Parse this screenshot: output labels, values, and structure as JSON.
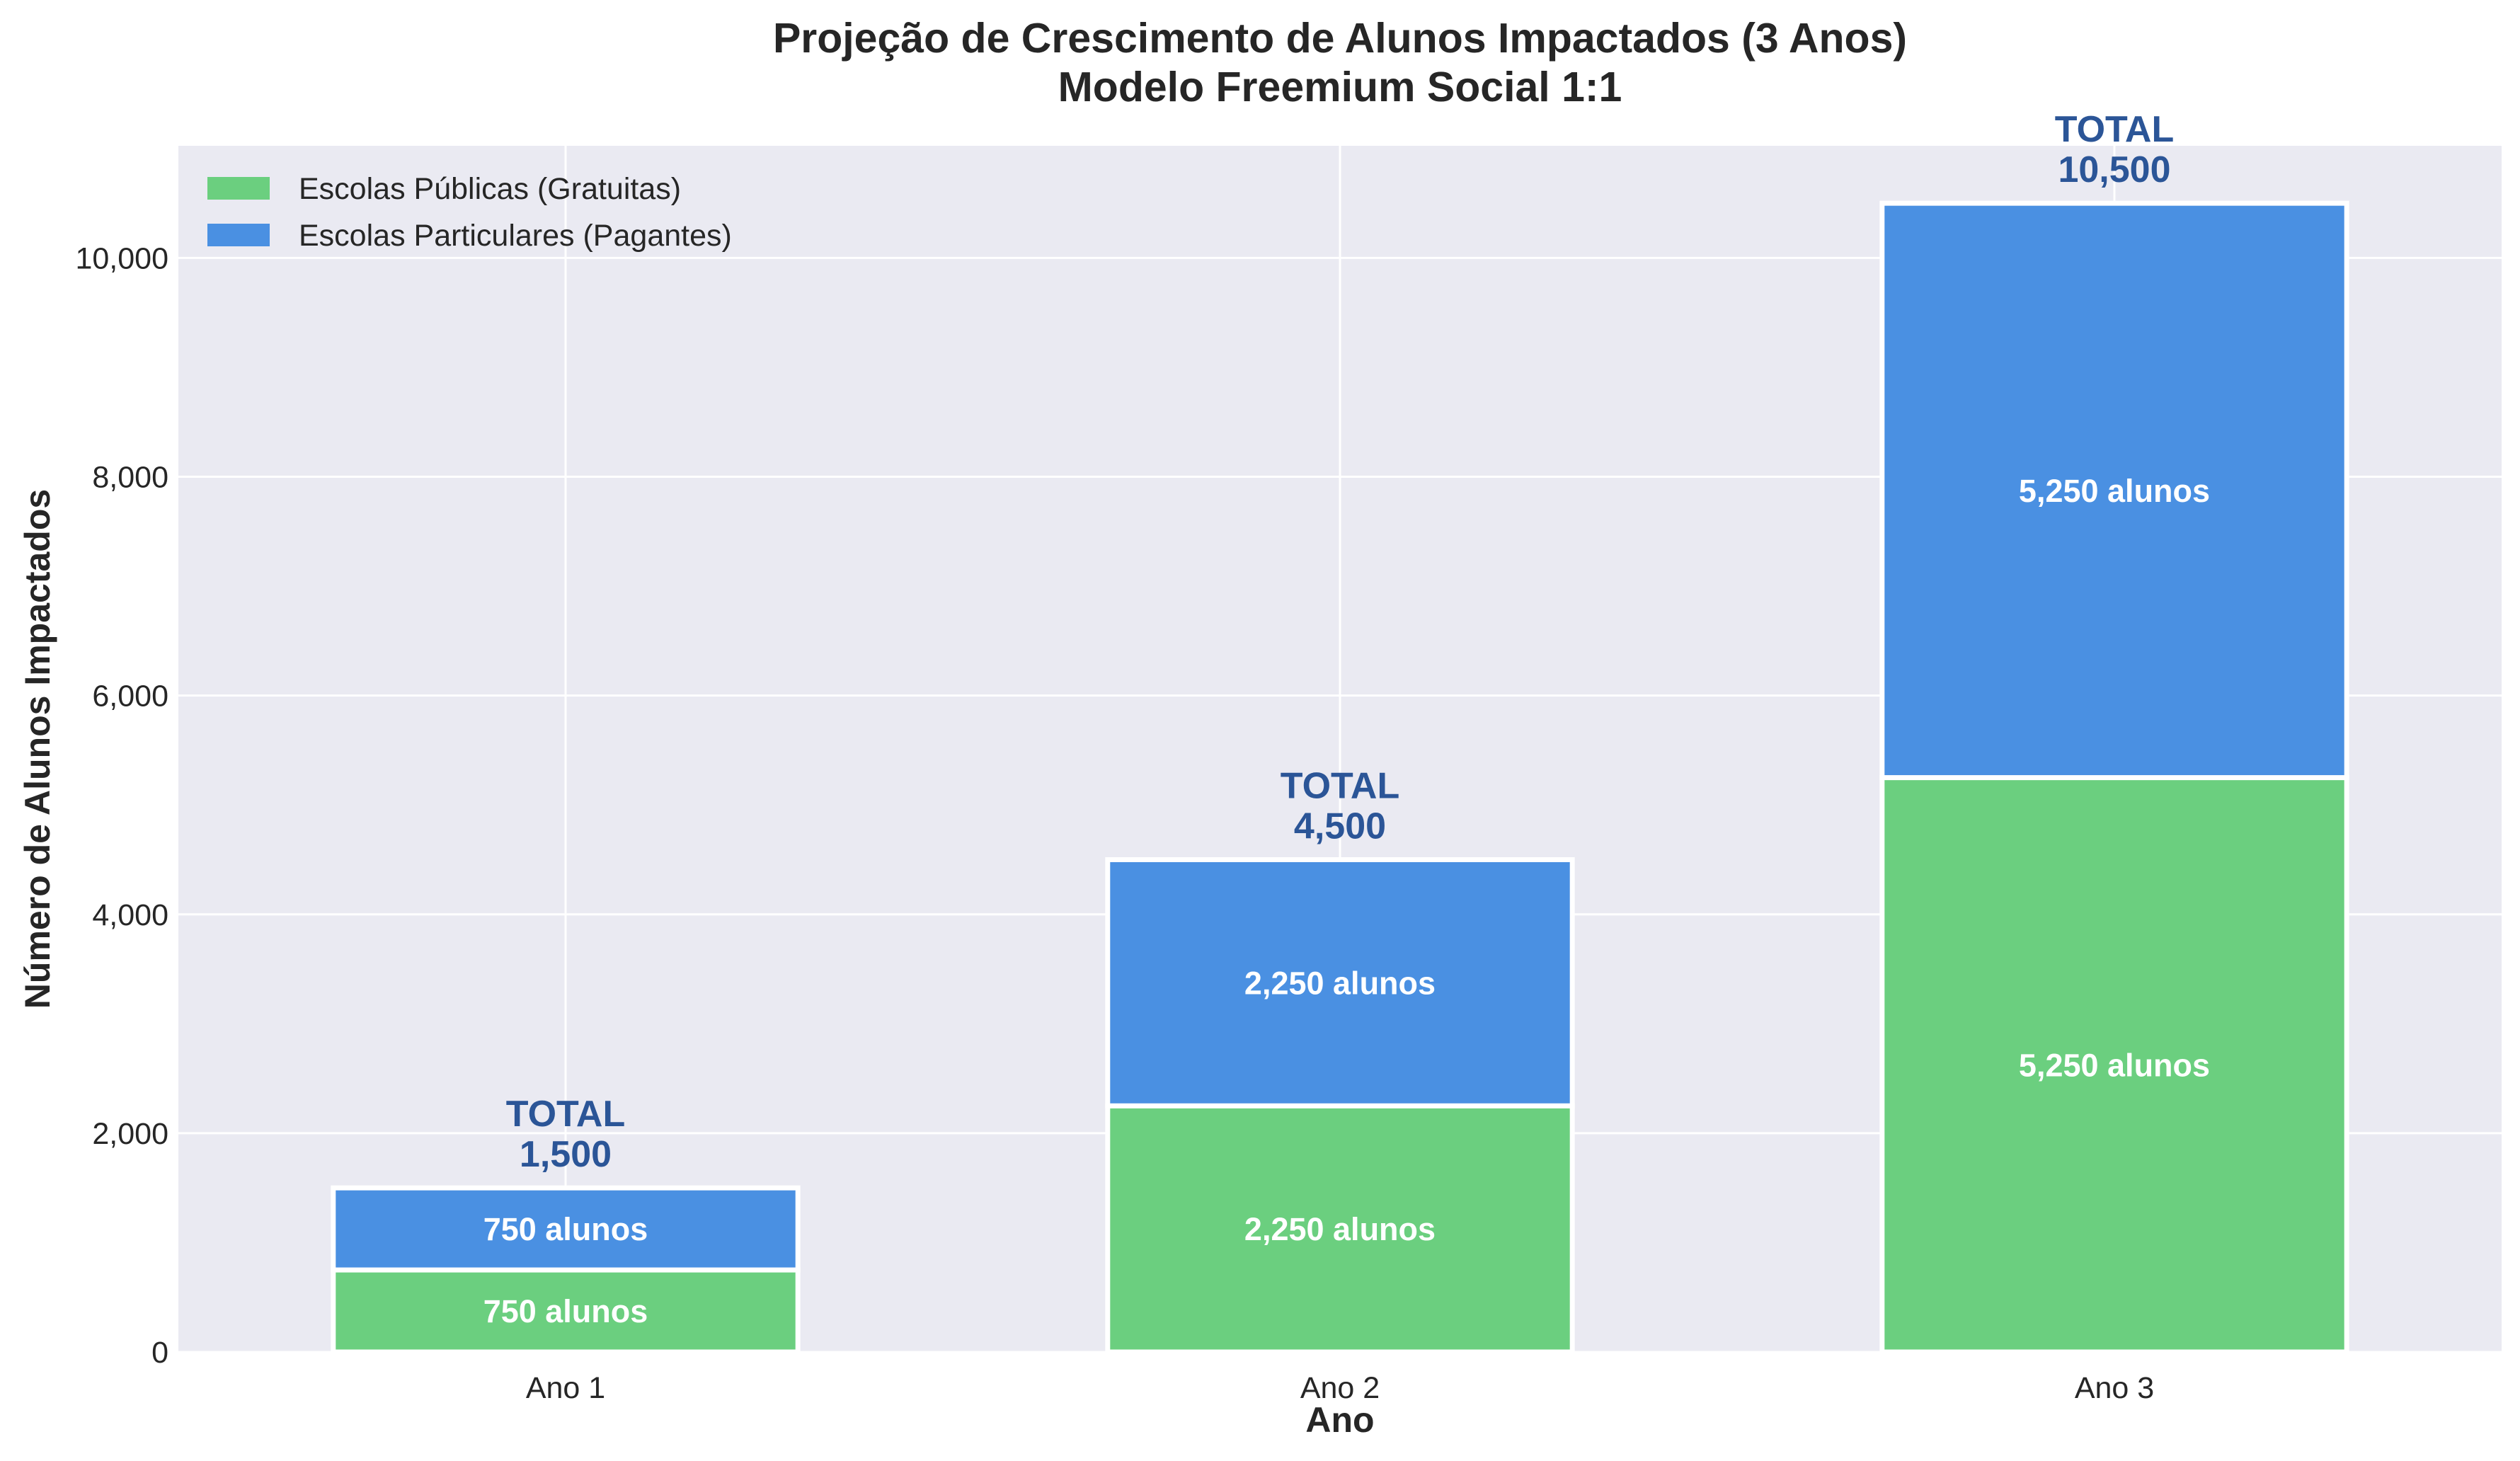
{
  "chart_data": {
    "type": "bar",
    "stacked": true,
    "title": "Projeção de Crescimento de Alunos Impactados (3 Anos)",
    "subtitle": "Modelo Freemium Social 1:1",
    "xlabel": "Ano",
    "ylabel": "Número de Alunos Impactados",
    "categories": [
      "Ano 1",
      "Ano 2",
      "Ano 3"
    ],
    "ylim": [
      0,
      11025
    ],
    "yticks": [
      0,
      2000,
      4000,
      6000,
      8000,
      10000
    ],
    "ytick_labels": [
      "0",
      "2,000",
      "4,000",
      "6,000",
      "8,000",
      "10,000"
    ],
    "grid": true,
    "legend_position": "top-left",
    "series": [
      {
        "name": "Escolas Públicas (Gratuitas)",
        "color": "#6bcf7f",
        "values": [
          750,
          2250,
          5250
        ],
        "labels": [
          "750 alunos",
          "2,250 alunos",
          "5,250 alunos"
        ]
      },
      {
        "name": "Escolas Particulares (Pagantes)",
        "color": "#4a90e2",
        "values": [
          750,
          2250,
          5250
        ],
        "labels": [
          "750 alunos",
          "2,250 alunos",
          "5,250 alunos"
        ]
      }
    ],
    "totals": [
      {
        "word": "TOTAL",
        "value": "1,500"
      },
      {
        "word": "TOTAL",
        "value": "4,500"
      },
      {
        "word": "TOTAL",
        "value": "10,500"
      }
    ],
    "colors": {
      "plot_background": "#eaeaf2",
      "grid": "#ffffff",
      "total_text": "#2b5597"
    }
  }
}
